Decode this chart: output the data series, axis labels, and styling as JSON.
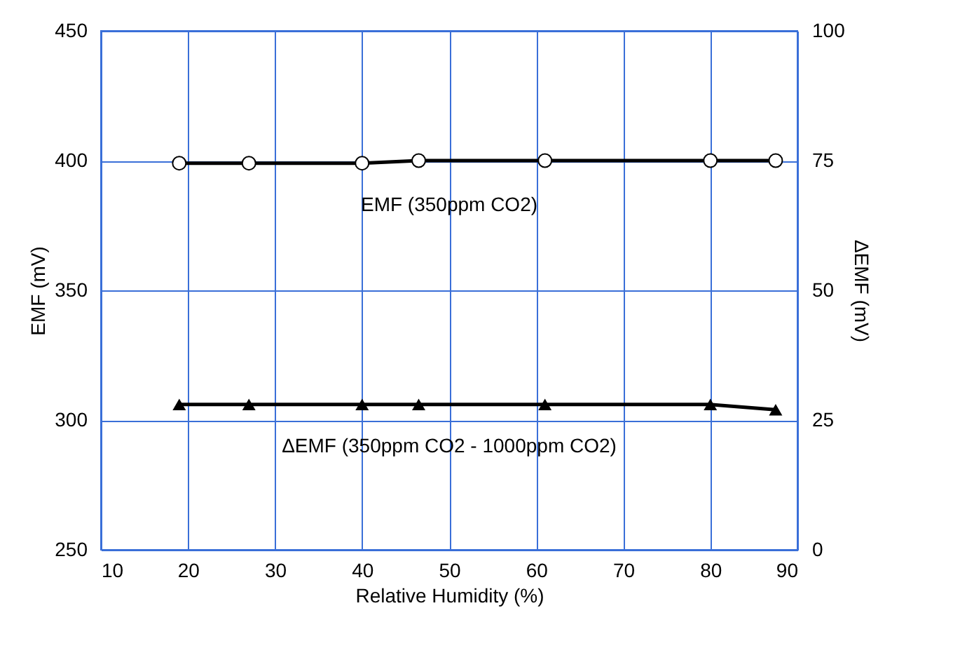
{
  "chart_data": {
    "type": "line",
    "xlabel": "Relative Humidity (%)",
    "ylabel": "EMF (mV)",
    "y2label": "ΔEMF (mV)",
    "x": [
      19,
      27,
      40,
      46.5,
      61,
      80,
      87.5
    ],
    "series": [
      {
        "name": "EMF (350ppm CO2)",
        "color": "#000000",
        "marker": "circle",
        "values": [
          399,
          399,
          399,
          400,
          400,
          400,
          400
        ]
      },
      {
        "name": "ΔEMF (350ppm CO2 - 1000ppm CO2)",
        "color": "#000000",
        "marker": "triangle",
        "axis": "y2",
        "values": [
          28,
          28,
          28,
          28,
          28,
          28,
          27
        ]
      }
    ],
    "xlim": [
      10,
      90
    ],
    "xticks": [
      10,
      20,
      30,
      40,
      50,
      60,
      70,
      80,
      90
    ],
    "ylim": [
      250,
      450
    ],
    "yticks": [
      250,
      300,
      350,
      400,
      450
    ],
    "y2lim": [
      0,
      100
    ],
    "y2ticks": [
      0,
      25,
      50,
      75,
      100
    ],
    "grid": true,
    "legend": false
  }
}
